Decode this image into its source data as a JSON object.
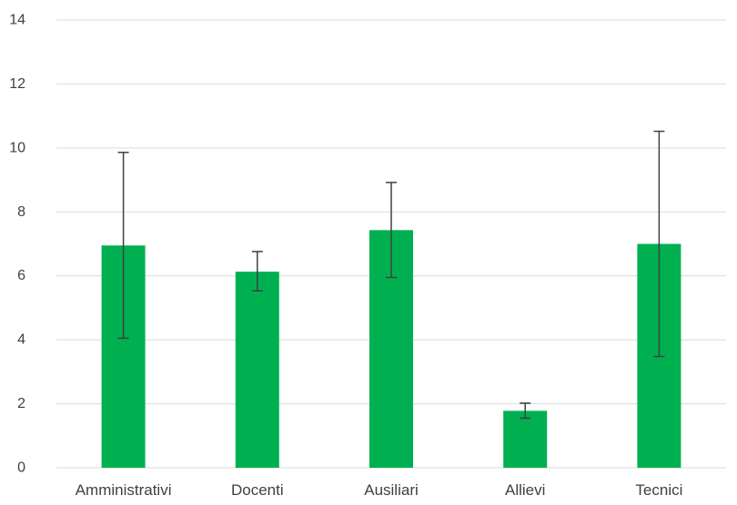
{
  "chart_data": {
    "type": "bar",
    "categories": [
      "Amministrativi",
      "Docenti",
      "Ausiliari",
      "Allievi",
      "Tecnici"
    ],
    "values": [
      6.95,
      6.13,
      7.43,
      1.78,
      7.0
    ],
    "error_low": [
      4.05,
      5.53,
      5.95,
      1.55,
      3.48
    ],
    "error_high": [
      9.86,
      6.76,
      8.92,
      2.02,
      10.52
    ],
    "ylim": [
      0,
      14
    ],
    "yticks": [
      "0",
      "2",
      "4",
      "6",
      "8",
      "10",
      "12",
      "14"
    ],
    "grid": true,
    "legend": "none",
    "colors": {
      "bar": "#00B050",
      "grid": "#D9D9D9",
      "error": "#404040",
      "text": "#404040"
    }
  }
}
